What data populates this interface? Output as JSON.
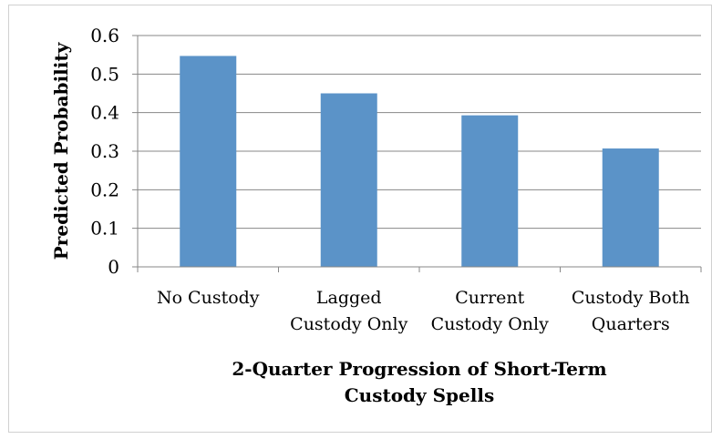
{
  "chart_data": {
    "type": "bar",
    "categories": [
      [
        "No Custody"
      ],
      [
        "Lagged",
        "Custody Only"
      ],
      [
        "Current",
        "Custody Only"
      ],
      [
        "Custody Both",
        "Quarters"
      ]
    ],
    "values": [
      0.547,
      0.45,
      0.393,
      0.307
    ],
    "ylabel": "Predicted Probability",
    "xlabel": [
      "2-Quarter Progression of Short-Term",
      "Custody Spells"
    ],
    "ylim": [
      0,
      0.6
    ],
    "yticks": [
      "0",
      "0.1",
      "0.2",
      "0.3",
      "0.4",
      "0.5",
      "0.6"
    ],
    "grid": true,
    "legend": "none",
    "colors": {
      "bar": "#5b93c8",
      "grid": "#878787",
      "axis": "#878787"
    }
  }
}
